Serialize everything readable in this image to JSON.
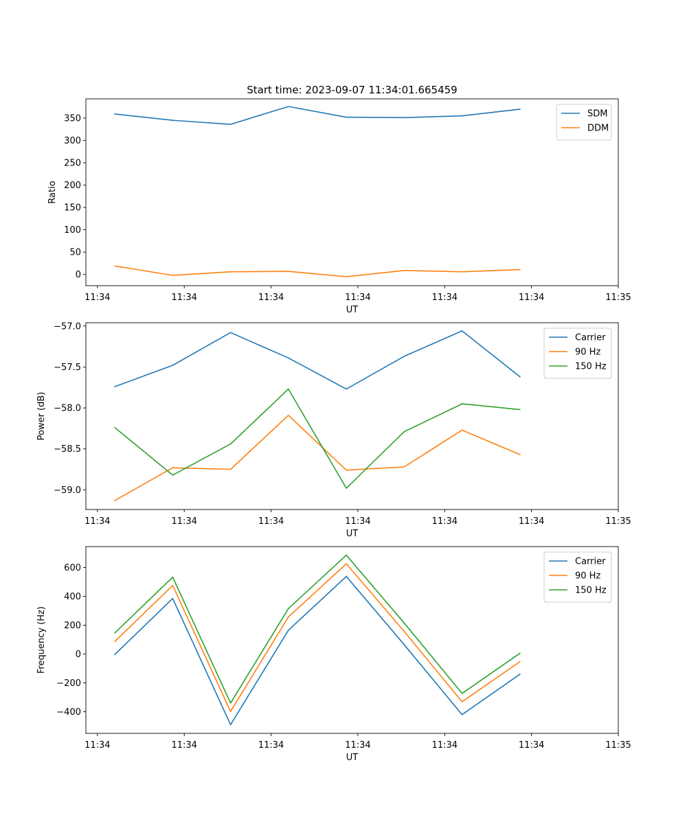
{
  "chart_data": [
    {
      "type": "line",
      "title": "Start time: 2023-09-07 11:34:01.665459",
      "xlabel": "UT",
      "ylabel": "Ratio",
      "x": [
        1,
        2,
        3,
        4,
        5,
        6,
        7,
        8
      ],
      "xlim": [
        0.5,
        9.7
      ],
      "xtick_positions": [
        0.7,
        2.2,
        3.7,
        5.2,
        6.7,
        8.2,
        9.7
      ],
      "xtick_labels": [
        "11:34",
        "11:34",
        "11:34",
        "11:34",
        "11:34",
        "11:34",
        "11:35"
      ],
      "ylim": [
        -25,
        393
      ],
      "yticks": [
        0,
        50,
        100,
        150,
        200,
        250,
        300,
        350
      ],
      "ytick_labels": [
        "0",
        "50",
        "100",
        "150",
        "200",
        "250",
        "300",
        "350"
      ],
      "legend": "top-right",
      "series": [
        {
          "name": "SDM",
          "color": "#1f77b4",
          "values": [
            359,
            345,
            336,
            376,
            352,
            351,
            355,
            370
          ]
        },
        {
          "name": "DDM",
          "color": "#ff7f0e",
          "values": [
            19,
            -2,
            6,
            7,
            -5,
            9,
            6,
            11
          ]
        }
      ]
    },
    {
      "type": "line",
      "title": "",
      "xlabel": "UT",
      "ylabel": "Power (dB)",
      "x": [
        1,
        2,
        3,
        4,
        5,
        6,
        7,
        8
      ],
      "xlim": [
        0.5,
        9.7
      ],
      "xtick_positions": [
        0.7,
        2.2,
        3.7,
        5.2,
        6.7,
        8.2,
        9.7
      ],
      "xtick_labels": [
        "11:34",
        "11:34",
        "11:34",
        "11:34",
        "11:34",
        "11:34",
        "11:35"
      ],
      "ylim": [
        -59.24,
        -56.96
      ],
      "yticks": [
        -59.0,
        -58.5,
        -58.0,
        -57.5,
        -57.0
      ],
      "ytick_labels": [
        "−59.0",
        "−58.5",
        "−58.0",
        "−57.5",
        "−57.0"
      ],
      "legend": "top-right",
      "series": [
        {
          "name": "Carrier",
          "color": "#1f77b4",
          "values": [
            -57.74,
            -57.48,
            -57.08,
            -57.39,
            -57.77,
            -57.37,
            -57.06,
            -57.62
          ]
        },
        {
          "name": "90 Hz",
          "color": "#ff7f0e",
          "values": [
            -59.13,
            -58.73,
            -58.75,
            -58.09,
            -58.76,
            -58.72,
            -58.27,
            -58.57
          ]
        },
        {
          "name": "150 Hz",
          "color": "#2ca02c",
          "values": [
            -58.24,
            -58.82,
            -58.44,
            -57.77,
            -58.98,
            -58.29,
            -57.95,
            -58.02
          ]
        }
      ]
    },
    {
      "type": "line",
      "title": "",
      "xlabel": "UT",
      "ylabel": "Frequency (Hz)",
      "x": [
        1,
        2,
        3,
        4,
        5,
        6,
        7,
        8
      ],
      "xlim": [
        0.5,
        9.7
      ],
      "xtick_positions": [
        0.7,
        2.2,
        3.7,
        5.2,
        6.7,
        8.2,
        9.7
      ],
      "xtick_labels": [
        "11:34",
        "11:34",
        "11:34",
        "11:34",
        "11:34",
        "11:34",
        "11:35"
      ],
      "ylim": [
        -550,
        745
      ],
      "yticks": [
        -400,
        -200,
        0,
        200,
        400,
        600
      ],
      "ytick_labels": [
        "−400",
        "−200",
        "0",
        "200",
        "400",
        "600"
      ],
      "legend": "top-right",
      "series": [
        {
          "name": "Carrier",
          "color": "#1f77b4",
          "values": [
            -3,
            385,
            -490,
            165,
            538,
            65,
            -420,
            -140
          ]
        },
        {
          "name": "90 Hz",
          "color": "#ff7f0e",
          "values": [
            87,
            475,
            -398,
            257,
            626,
            157,
            -331,
            -53
          ]
        },
        {
          "name": "150 Hz",
          "color": "#2ca02c",
          "values": [
            146,
            533,
            -340,
            315,
            686,
            215,
            -273,
            5
          ]
        }
      ]
    }
  ]
}
